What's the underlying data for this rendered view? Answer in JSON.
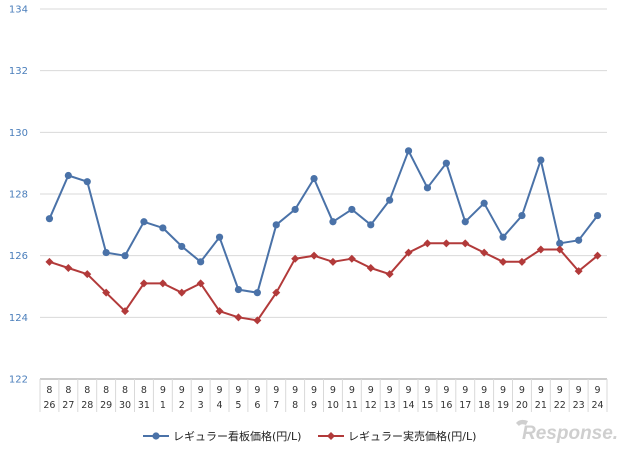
{
  "chart_data": {
    "type": "line",
    "categories": [
      [
        "8",
        "26"
      ],
      [
        "8",
        "27"
      ],
      [
        "8",
        "28"
      ],
      [
        "8",
        "29"
      ],
      [
        "8",
        "30"
      ],
      [
        "8",
        "31"
      ],
      [
        "9",
        "1"
      ],
      [
        "9",
        "2"
      ],
      [
        "9",
        "3"
      ],
      [
        "9",
        "4"
      ],
      [
        "9",
        "5"
      ],
      [
        "9",
        "6"
      ],
      [
        "9",
        "7"
      ],
      [
        "9",
        "8"
      ],
      [
        "9",
        "9"
      ],
      [
        "9",
        "10"
      ],
      [
        "9",
        "11"
      ],
      [
        "9",
        "12"
      ],
      [
        "9",
        "13"
      ],
      [
        "9",
        "14"
      ],
      [
        "9",
        "15"
      ],
      [
        "9",
        "16"
      ],
      [
        "9",
        "17"
      ],
      [
        "9",
        "18"
      ],
      [
        "9",
        "19"
      ],
      [
        "9",
        "20"
      ],
      [
        "9",
        "21"
      ],
      [
        "9",
        "22"
      ],
      [
        "9",
        "23"
      ],
      [
        "9",
        "24"
      ]
    ],
    "series": [
      {
        "name": "レギュラー看板価格(円/L)",
        "color": "#4a72a8",
        "marker": "circle",
        "values": [
          127.2,
          128.6,
          128.4,
          126.1,
          126.0,
          127.1,
          126.9,
          126.3,
          125.8,
          126.6,
          124.9,
          124.8,
          127.0,
          127.5,
          128.5,
          127.1,
          127.5,
          127.0,
          127.8,
          129.4,
          128.2,
          129.0,
          127.1,
          127.7,
          126.6,
          127.3,
          129.1,
          126.4,
          126.5,
          127.3
        ]
      },
      {
        "name": "レギュラー実売価格(円/L)",
        "color": "#b23a3a",
        "marker": "diamond",
        "values": [
          125.8,
          125.6,
          125.4,
          124.8,
          124.2,
          125.1,
          125.1,
          124.8,
          125.1,
          124.2,
          124.0,
          123.9,
          124.8,
          125.9,
          126.0,
          125.8,
          125.9,
          125.6,
          125.4,
          126.1,
          126.4,
          126.4,
          126.4,
          126.1,
          125.8,
          125.8,
          126.2,
          126.2,
          125.5,
          126.0
        ]
      }
    ],
    "ylim": [
      122,
      134
    ],
    "yticks": [
      122,
      124,
      126,
      128,
      130,
      132,
      134
    ],
    "grid": true,
    "legend": "bottom"
  },
  "colors": {
    "gridline": "#d9d9d9",
    "axis": "#9a9a9a",
    "ytick_label": "#4a7ebb"
  },
  "watermark": {
    "text": "Response."
  }
}
